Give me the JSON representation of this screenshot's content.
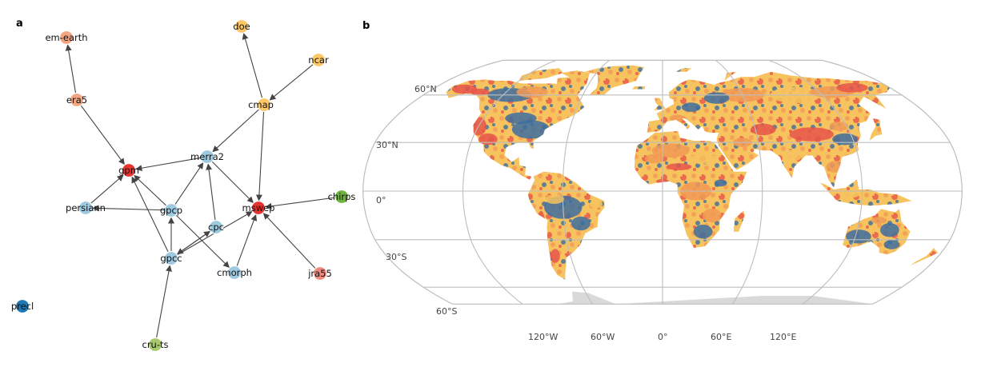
{
  "panel_a": {
    "label": "a",
    "colors": {
      "edge": "#444444",
      "orange": "#f4a582",
      "yellow": "#fdc865",
      "red": "#e8322f",
      "lightblue": "#9ecae1",
      "green": "#6db33f",
      "lightgreen": "#a6c96a",
      "blue": "#1f78b4",
      "salmon": "#f08a7e"
    },
    "nodes": [
      {
        "id": "em-earth",
        "label": "em-earth",
        "color": "orange"
      },
      {
        "id": "doe",
        "label": "doe",
        "color": "yellow"
      },
      {
        "id": "ncar",
        "label": "ncar",
        "color": "yellow"
      },
      {
        "id": "era5",
        "label": "era5",
        "color": "orange"
      },
      {
        "id": "cmap",
        "label": "cmap",
        "color": "yellow"
      },
      {
        "id": "merra2",
        "label": "merra2",
        "color": "lightblue"
      },
      {
        "id": "gpm",
        "label": "gpm",
        "color": "red"
      },
      {
        "id": "chirps",
        "label": "chirps",
        "color": "green"
      },
      {
        "id": "persiann",
        "label": "persiann",
        "color": "lightblue"
      },
      {
        "id": "gpcp",
        "label": "gpcp",
        "color": "lightblue"
      },
      {
        "id": "mswep",
        "label": "mswep",
        "color": "red"
      },
      {
        "id": "cpc",
        "label": "cpc",
        "color": "lightblue"
      },
      {
        "id": "gpcc",
        "label": "gpcc",
        "color": "lightblue"
      },
      {
        "id": "cmorph",
        "label": "cmorph",
        "color": "lightblue"
      },
      {
        "id": "jra55",
        "label": "jra55",
        "color": "salmon"
      },
      {
        "id": "precl",
        "label": "precl",
        "color": "blue"
      },
      {
        "id": "cru-ts",
        "label": "cru-ts",
        "color": "lightgreen"
      }
    ],
    "edges": [
      [
        "era5",
        "em-earth"
      ],
      [
        "era5",
        "gpm"
      ],
      [
        "cmap",
        "doe"
      ],
      [
        "ncar",
        "cmap"
      ],
      [
        "cmap",
        "merra2"
      ],
      [
        "cmap",
        "mswep"
      ],
      [
        "merra2",
        "gpm"
      ],
      [
        "merra2",
        "mswep"
      ],
      [
        "persiann",
        "gpm"
      ],
      [
        "gpcp",
        "persiann"
      ],
      [
        "gpcp",
        "merra2"
      ],
      [
        "gpcp",
        "gpm"
      ],
      [
        "gpcp",
        "cmorph"
      ],
      [
        "gpcc",
        "gpm"
      ],
      [
        "gpcc",
        "gpcp"
      ],
      [
        "gpcc",
        "mswep"
      ],
      [
        "gpcc",
        "cpc"
      ],
      [
        "cpc",
        "merra2"
      ],
      [
        "cpc",
        "gpcc"
      ],
      [
        "cmorph",
        "mswep"
      ],
      [
        "chirps",
        "mswep"
      ],
      [
        "jra55",
        "mswep"
      ],
      [
        "cru-ts",
        "gpcc"
      ]
    ]
  },
  "panel_b": {
    "label": "b",
    "lat_labels": [
      "60°N",
      "30°N",
      "0°",
      "30°S",
      "60°S"
    ],
    "lon_labels": [
      "120°W",
      "60°W",
      "0°",
      "60°E",
      "120°E"
    ],
    "colors": {
      "red": "#e8554a",
      "yellow": "#f6c35e",
      "orange": "#f29a56",
      "blue": "#3d6fa0",
      "grid": "#bdbdbd",
      "antarctica": "#d9d9d9"
    }
  }
}
